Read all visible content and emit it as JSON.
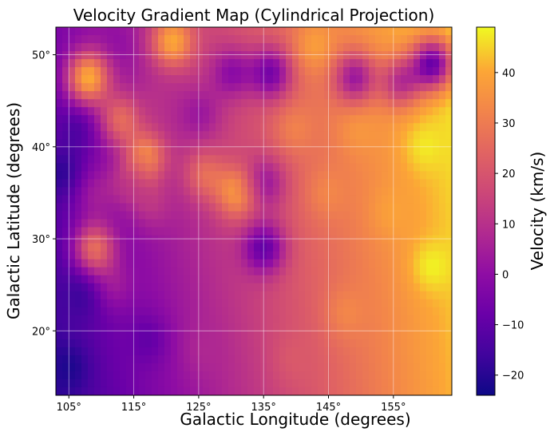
{
  "chart_data": {
    "type": "heatmap",
    "title": "Velocity Gradient Map (Cylindrical Projection)",
    "xlabel": "Galactic Longitude (degrees)",
    "ylabel": "Galactic Latitude (degrees)",
    "xlim": [
      103,
      164
    ],
    "ylim": [
      13,
      53
    ],
    "xticks": [
      105,
      115,
      125,
      135,
      145,
      155
    ],
    "xtick_labels": [
      "105°",
      "115°",
      "125°",
      "135°",
      "145°",
      "155°"
    ],
    "yticks": [
      20,
      30,
      40,
      50
    ],
    "ytick_labels": [
      "20°",
      "30°",
      "40°",
      "50°"
    ],
    "grid": true,
    "colorbar": {
      "label": "Velocity (km/s)",
      "min": -24,
      "max": 49,
      "ticks": [
        -20,
        -10,
        0,
        10,
        20,
        30,
        40
      ],
      "tick_labels": [
        "−20",
        "−10",
        "0",
        "10",
        "20",
        "30",
        "40"
      ],
      "colormap": "plasma"
    },
    "blobs": [
      {
        "lon": 108,
        "lat": 47.5,
        "v": 46
      },
      {
        "lon": 121,
        "lat": 51.5,
        "v": 44
      },
      {
        "lon": 143,
        "lat": 51,
        "v": 40
      },
      {
        "lon": 112,
        "lat": 51,
        "v": 0
      },
      {
        "lon": 106,
        "lat": 42,
        "v": -14
      },
      {
        "lon": 104,
        "lat": 37,
        "v": -20
      },
      {
        "lon": 109,
        "lat": 35,
        "v": 5
      },
      {
        "lon": 114,
        "lat": 36,
        "v": 10
      },
      {
        "lon": 113,
        "lat": 43,
        "v": 28
      },
      {
        "lon": 117,
        "lat": 39,
        "v": 35
      },
      {
        "lon": 119,
        "lat": 45,
        "v": 10
      },
      {
        "lon": 125,
        "lat": 43.5,
        "v": 2
      },
      {
        "lon": 130,
        "lat": 48,
        "v": -2
      },
      {
        "lon": 136,
        "lat": 48,
        "v": -8
      },
      {
        "lon": 149,
        "lat": 47.5,
        "v": 0
      },
      {
        "lon": 156,
        "lat": 47,
        "v": 8
      },
      {
        "lon": 161,
        "lat": 49,
        "v": -12
      },
      {
        "lon": 135,
        "lat": 36,
        "v": 0
      },
      {
        "lon": 135,
        "lat": 29,
        "v": -12
      },
      {
        "lon": 131,
        "lat": 35,
        "v": 40
      },
      {
        "lon": 126,
        "lat": 37,
        "v": 28
      },
      {
        "lon": 118,
        "lat": 34,
        "v": 12
      },
      {
        "lon": 109,
        "lat": 29,
        "v": 30
      },
      {
        "lon": 107,
        "lat": 24,
        "v": -18
      },
      {
        "lon": 112,
        "lat": 25,
        "v": 5
      },
      {
        "lon": 105,
        "lat": 16,
        "v": -22
      },
      {
        "lon": 117,
        "lat": 19,
        "v": -10
      },
      {
        "lon": 126,
        "lat": 18,
        "v": 8
      },
      {
        "lon": 140,
        "lat": 17,
        "v": 22
      },
      {
        "lon": 148,
        "lat": 22,
        "v": 34
      },
      {
        "lon": 160,
        "lat": 40,
        "v": 48
      },
      {
        "lon": 161,
        "lat": 27,
        "v": 49
      },
      {
        "lon": 155,
        "lat": 33,
        "v": 40
      },
      {
        "lon": 145,
        "lat": 35,
        "v": 34
      },
      {
        "lon": 140,
        "lat": 42,
        "v": 33
      },
      {
        "lon": 150,
        "lat": 42,
        "v": 38
      }
    ]
  }
}
